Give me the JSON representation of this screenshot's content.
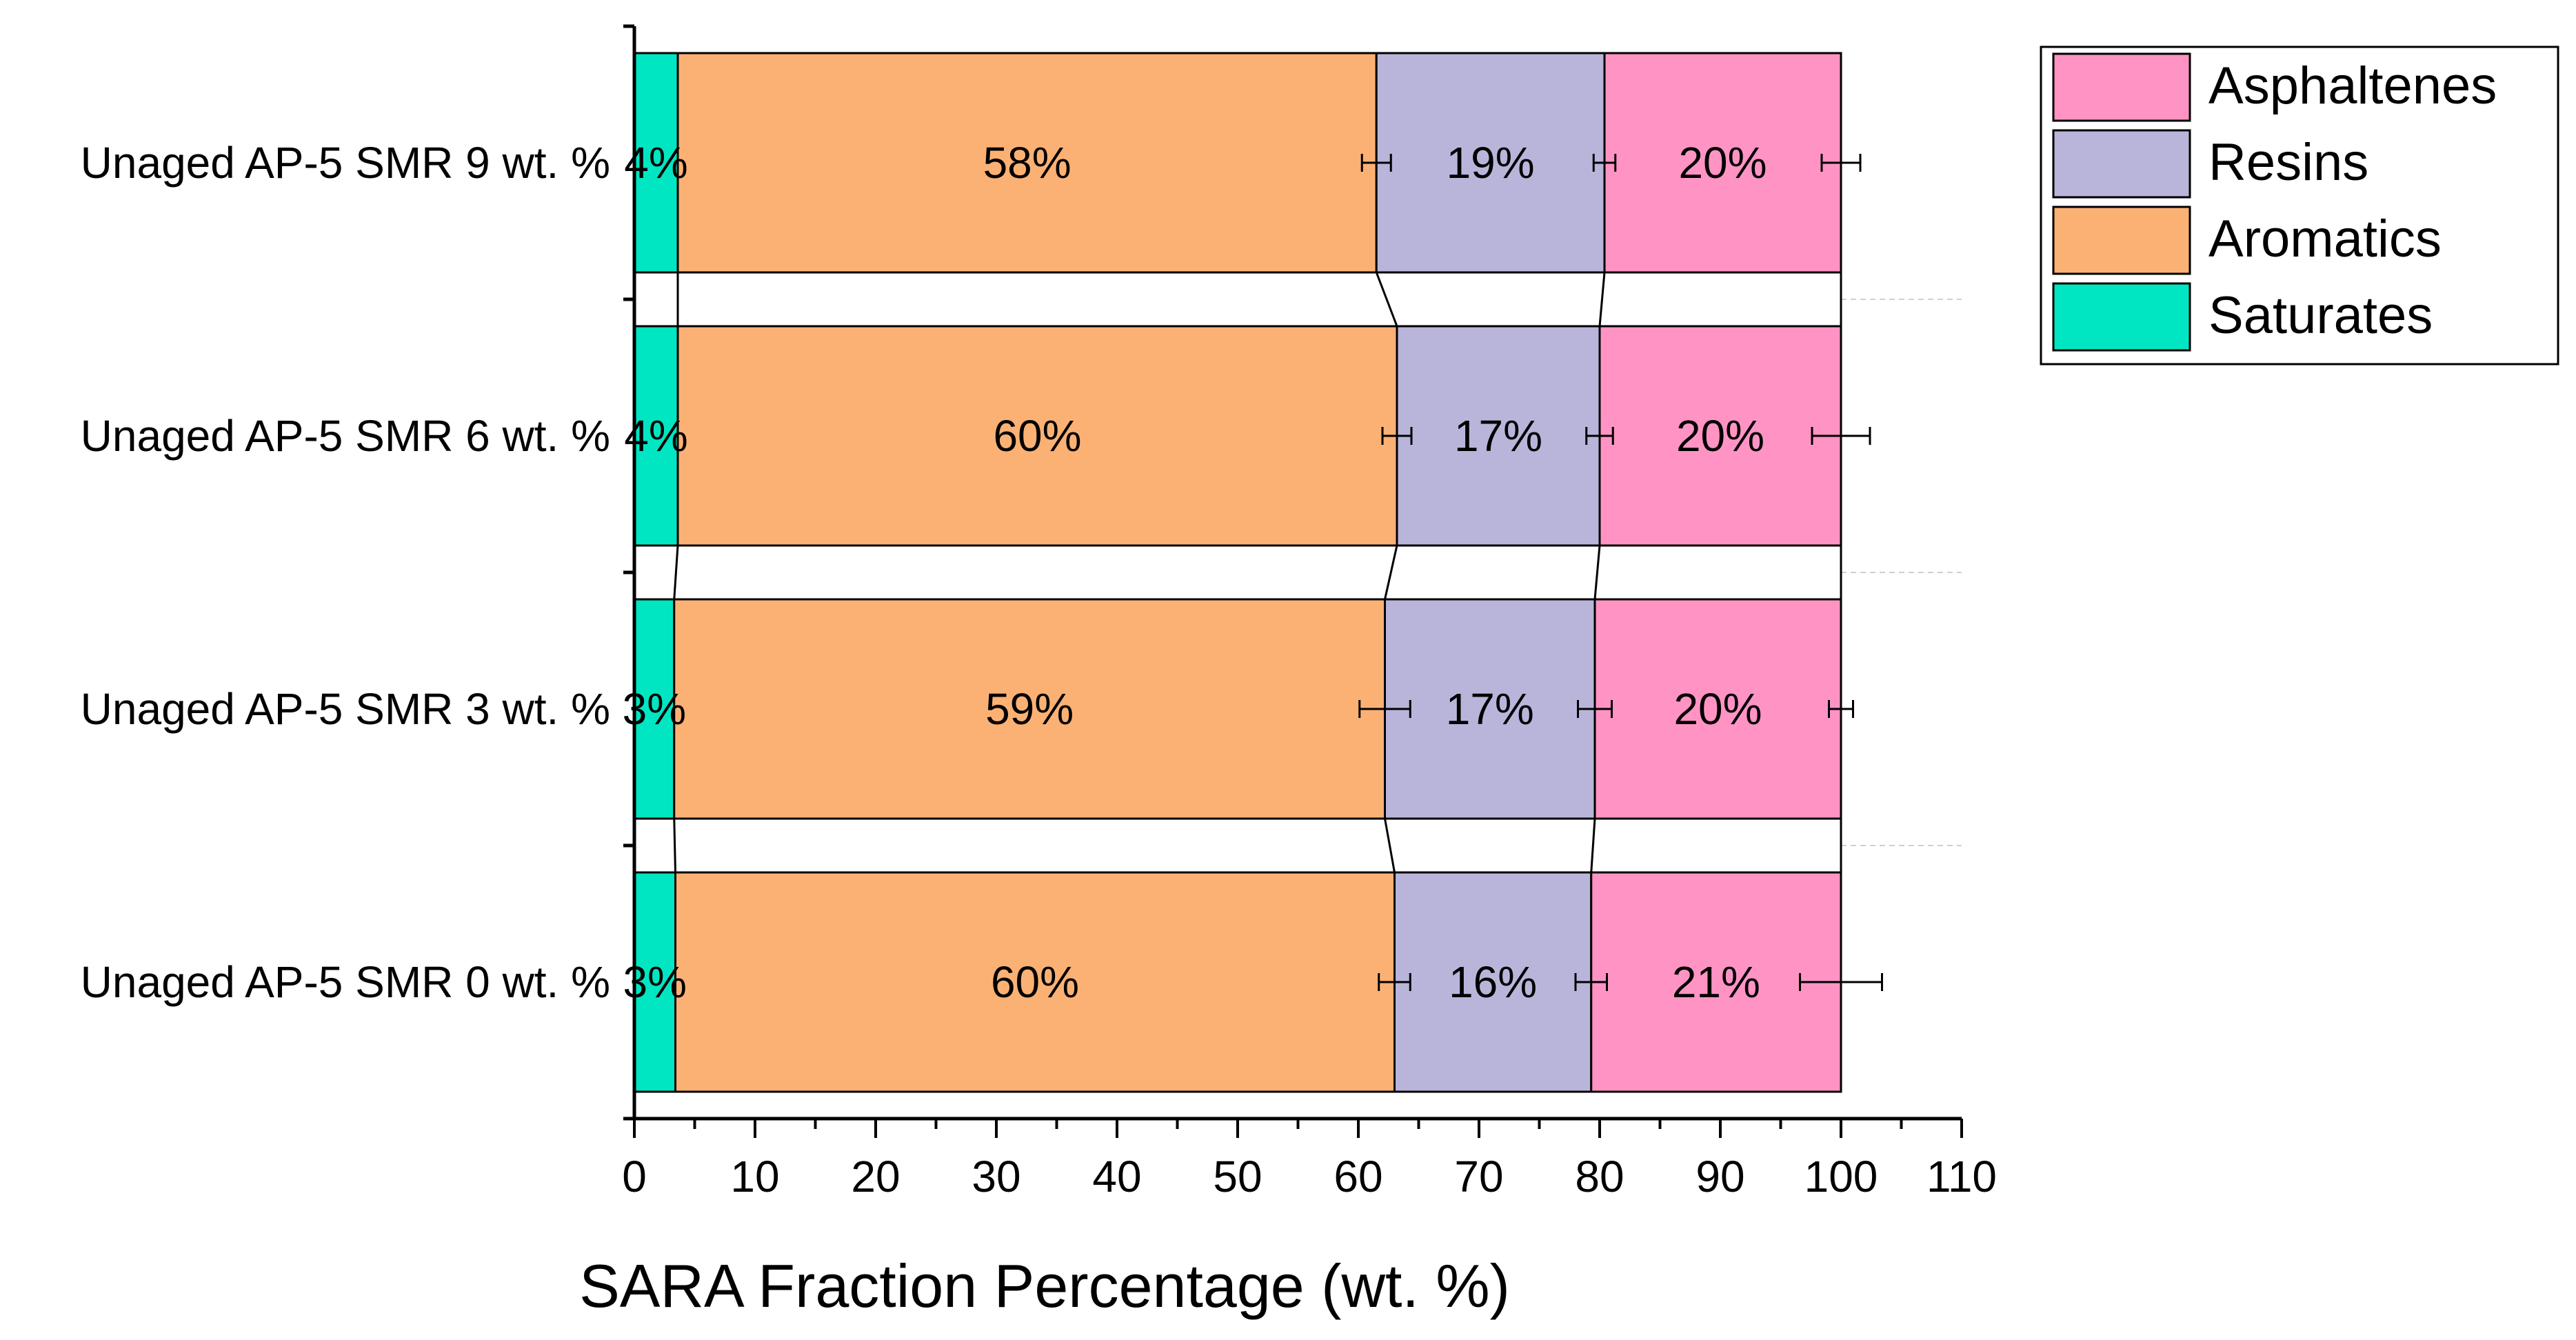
{
  "chart_data": {
    "type": "bar",
    "orientation": "horizontal",
    "stacked": true,
    "title": "",
    "xlabel": "SARA Fraction Percentage (wt. %)",
    "ylabel": "",
    "xlim": [
      0,
      110
    ],
    "xticks": [
      "0",
      "10",
      "20",
      "30",
      "40",
      "50",
      "60",
      "70",
      "80",
      "90",
      "100",
      "110"
    ],
    "categories": [
      "Unaged AP-5 SMR 0 wt. %",
      "Unaged AP-5 SMR 3 wt. %",
      "Unaged AP-5 SMR 6 wt. %",
      "Unaged AP-5 SMR 9 wt. %"
    ],
    "series": [
      {
        "name": "Saturates",
        "color": "#00E6C3",
        "values": [
          3.4,
          3.3,
          3.6,
          3.6
        ],
        "labels": [
          "3%",
          "3%",
          "4%",
          "4%"
        ],
        "error": [
          null,
          null,
          null,
          null
        ]
      },
      {
        "name": "Aromatics",
        "color": "#FCB174",
        "values": [
          59.6,
          58.9,
          59.6,
          57.9
        ],
        "labels": [
          "60%",
          "59%",
          "60%",
          "58%"
        ],
        "error": [
          1.3,
          2.1,
          1.2,
          1.2
        ]
      },
      {
        "name": "Resins",
        "color": "#B9B5DA",
        "values": [
          16.3,
          17.4,
          16.8,
          18.9
        ],
        "labels": [
          "16%",
          "17%",
          "17%",
          "19%"
        ],
        "error": [
          1.3,
          1.4,
          1.1,
          0.9
        ]
      },
      {
        "name": "Asphaltenes",
        "color": "#FF94C4",
        "values": [
          20.7,
          20.4,
          20.0,
          19.6
        ],
        "labels": [
          "21%",
          "20%",
          "20%",
          "20%"
        ],
        "error": [
          3.4,
          1.0,
          2.4,
          1.6
        ]
      }
    ],
    "legend": {
      "position": "top-right",
      "order": [
        "Asphaltenes",
        "Resins",
        "Aromatics",
        "Saturates"
      ]
    },
    "connector_lines": true,
    "grid": false
  }
}
